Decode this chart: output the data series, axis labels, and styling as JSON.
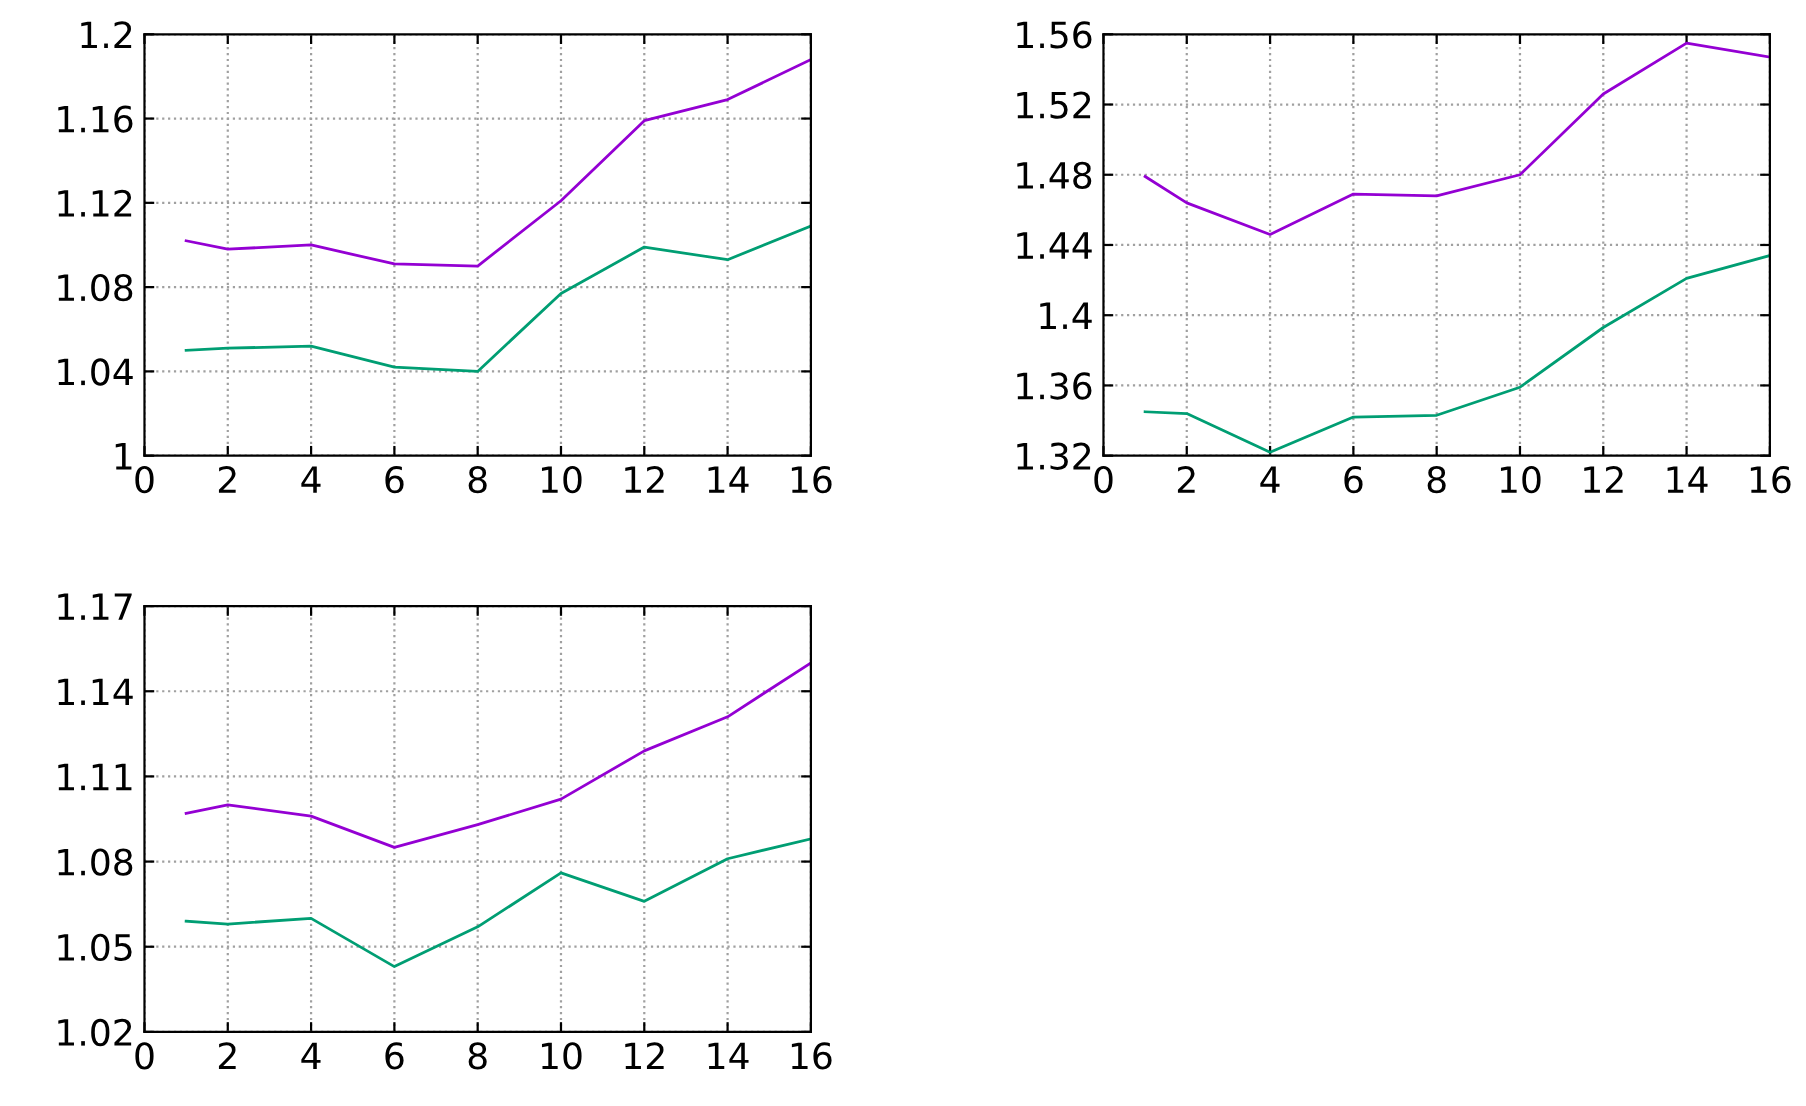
{
  "chart_data": [
    {
      "type": "line",
      "x": [
        1,
        2,
        4,
        6,
        8,
        10,
        12,
        14,
        16
      ],
      "xlim": [
        0,
        16
      ],
      "xticks": [
        0,
        2,
        4,
        6,
        8,
        10,
        12,
        14,
        16
      ],
      "ylim": [
        1,
        1.2
      ],
      "yticks": [
        1,
        1.04,
        1.08,
        1.12,
        1.16,
        1.2
      ],
      "grid": true,
      "series": [
        {
          "color": "#9400d3",
          "values": [
            1.102,
            1.098,
            1.1,
            1.091,
            1.09,
            1.121,
            1.159,
            1.169,
            1.188
          ]
        },
        {
          "color": "#009e73",
          "values": [
            1.05,
            1.051,
            1.052,
            1.042,
            1.04,
            1.077,
            1.099,
            1.093,
            1.109
          ]
        }
      ]
    },
    {
      "type": "line",
      "x": [
        1,
        2,
        4,
        6,
        8,
        10,
        12,
        14,
        16
      ],
      "xlim": [
        0,
        16
      ],
      "xticks": [
        0,
        2,
        4,
        6,
        8,
        10,
        12,
        14,
        16
      ],
      "ylim": [
        1.32,
        1.56
      ],
      "yticks": [
        1.32,
        1.36,
        1.4,
        1.44,
        1.48,
        1.52,
        1.56
      ],
      "grid": true,
      "series": [
        {
          "color": "#9400d3",
          "values": [
            1.479,
            1.464,
            1.446,
            1.469,
            1.468,
            1.48,
            1.526,
            1.555,
            1.547
          ]
        },
        {
          "color": "#009e73",
          "values": [
            1.345,
            1.344,
            1.322,
            1.342,
            1.343,
            1.359,
            1.393,
            1.421,
            1.434
          ]
        }
      ]
    },
    {
      "type": "line",
      "x": [
        1,
        2,
        4,
        6,
        8,
        10,
        12,
        14,
        16
      ],
      "xlim": [
        0,
        16
      ],
      "xticks": [
        0,
        2,
        4,
        6,
        8,
        10,
        12,
        14,
        16
      ],
      "ylim": [
        1.02,
        1.17
      ],
      "yticks": [
        1.02,
        1.05,
        1.08,
        1.11,
        1.14,
        1.17
      ],
      "grid": true,
      "series": [
        {
          "color": "#9400d3",
          "values": [
            1.097,
            1.1,
            1.096,
            1.085,
            1.093,
            1.102,
            1.119,
            1.131,
            1.15
          ]
        },
        {
          "color": "#009e73",
          "values": [
            1.059,
            1.058,
            1.06,
            1.043,
            1.057,
            1.076,
            1.066,
            1.081,
            1.088
          ]
        }
      ]
    }
  ]
}
